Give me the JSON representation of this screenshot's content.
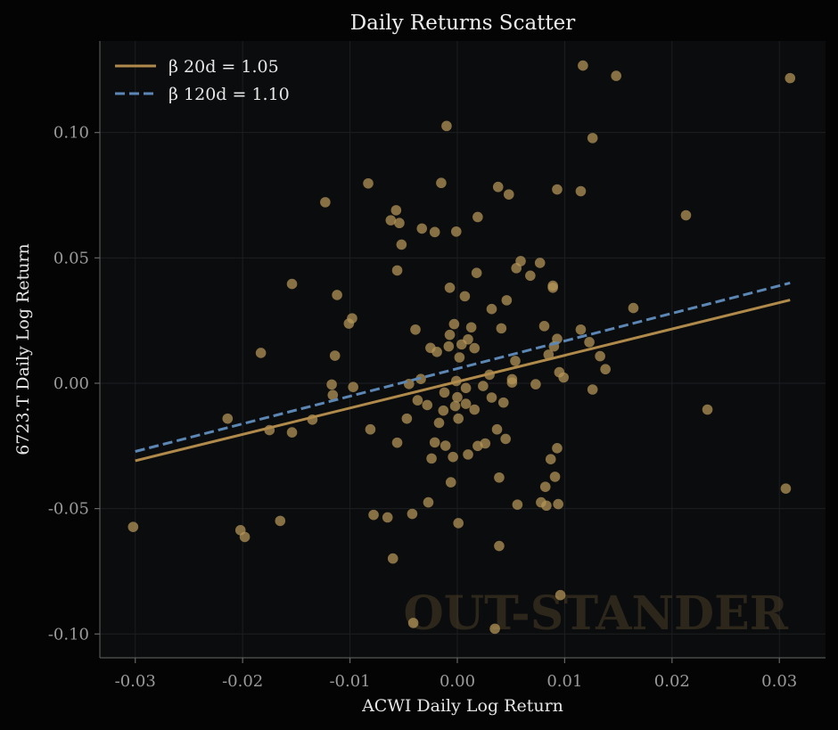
{
  "chart_data": {
    "type": "scatter",
    "title": "Daily Returns Scatter",
    "xlabel": "ACWI Daily Log Return",
    "ylabel": "6723.T Daily Log Return",
    "xlim": [
      -0.0333,
      0.0343
    ],
    "ylim": [
      -0.1095,
      0.1365
    ],
    "x_ticks": [
      -0.03,
      -0.02,
      -0.01,
      0.0,
      0.01,
      0.02,
      0.03
    ],
    "x_tick_labels": [
      "-0.03",
      "-0.02",
      "-0.01",
      "0.00",
      "0.01",
      "0.02",
      "0.03"
    ],
    "y_ticks": [
      -0.1,
      -0.05,
      0.0,
      0.05,
      0.1
    ],
    "y_tick_labels": [
      "-0.10",
      "-0.05",
      "0.00",
      "0.05",
      "0.10"
    ],
    "grid": true,
    "legend_position": "top-left",
    "watermark": "OUT-STANDER",
    "colors": {
      "background": "#0b0c0e",
      "figure": "#040404",
      "points": "#b79759",
      "line_20d": "#b08a4a",
      "line_120d": "#5c87b5",
      "grid": "#1c1e21",
      "axis": "#555555"
    },
    "lines": [
      {
        "name": "β 20d = 1.05",
        "style": "solid",
        "x": [
          -0.03,
          0.031
        ],
        "y": [
          -0.0309,
          0.0332
        ]
      },
      {
        "name": "β 120d = 1.10",
        "style": "dashed",
        "x": [
          -0.03,
          0.031
        ],
        "y": [
          -0.0272,
          0.04
        ]
      }
    ],
    "points": [
      [
        -0.0302,
        -0.0573
      ],
      [
        -0.0214,
        -0.0141
      ],
      [
        -0.0202,
        -0.0586
      ],
      [
        -0.0198,
        -0.0613
      ],
      [
        -0.0183,
        0.0121
      ],
      [
        -0.0175,
        -0.0187
      ],
      [
        -0.0165,
        -0.0549
      ],
      [
        -0.0154,
        0.0396
      ],
      [
        -0.0154,
        -0.0196
      ],
      [
        -0.0135,
        -0.0145
      ],
      [
        -0.0123,
        0.0722
      ],
      [
        -0.0117,
        -0.0005
      ],
      [
        -0.0116,
        -0.0047
      ],
      [
        -0.0114,
        0.011
      ],
      [
        -0.0112,
        0.0352
      ],
      [
        -0.0101,
        0.0238
      ],
      [
        -0.0098,
        0.0259
      ],
      [
        -0.0097,
        -0.0015
      ],
      [
        -0.0083,
        0.0797
      ],
      [
        -0.0081,
        -0.0184
      ],
      [
        -0.0078,
        -0.0525
      ],
      [
        -0.0065,
        -0.0535
      ],
      [
        -0.0062,
        0.065
      ],
      [
        -0.006,
        -0.0699
      ],
      [
        -0.0057,
        0.069
      ],
      [
        -0.0056,
        0.045
      ],
      [
        -0.0056,
        -0.0237
      ],
      [
        -0.0054,
        0.0639
      ],
      [
        -0.0052,
        0.0553
      ],
      [
        -0.0047,
        -0.0141
      ],
      [
        -0.0045,
        -0.0003
      ],
      [
        -0.0042,
        -0.0521
      ],
      [
        -0.0041,
        -0.0956
      ],
      [
        -0.0039,
        0.0214
      ],
      [
        -0.0037,
        -0.0068
      ],
      [
        -0.0034,
        0.0017
      ],
      [
        -0.0033,
        0.0617
      ],
      [
        -0.0028,
        -0.0087
      ],
      [
        -0.0027,
        -0.0475
      ],
      [
        -0.0025,
        0.0141
      ],
      [
        -0.0024,
        -0.03
      ],
      [
        -0.0021,
        0.0603
      ],
      [
        -0.0021,
        -0.0236
      ],
      [
        -0.0019,
        0.0125
      ],
      [
        -0.0017,
        -0.0158
      ],
      [
        -0.0015,
        0.0799
      ],
      [
        -0.0013,
        -0.0109
      ],
      [
        -0.0012,
        -0.0037
      ],
      [
        -0.0011,
        -0.0249
      ],
      [
        -0.001,
        0.1026
      ],
      [
        -0.0008,
        0.0147
      ],
      [
        -0.0007,
        0.0193
      ],
      [
        -0.0007,
        0.0381
      ],
      [
        -0.0006,
        -0.0395
      ],
      [
        -0.0004,
        -0.0294
      ],
      [
        -0.0003,
        0.0236
      ],
      [
        -0.0002,
        -0.0091
      ],
      [
        -0.0001,
        0.0605
      ],
      [
        -0.0001,
        0.0009
      ],
      [
        0.0,
        -0.0056
      ],
      [
        0.0001,
        -0.0141
      ],
      [
        0.0001,
        -0.0558
      ],
      [
        0.0002,
        0.0103
      ],
      [
        0.0004,
        0.0155
      ],
      [
        0.0007,
        0.0347
      ],
      [
        0.0008,
        -0.0019
      ],
      [
        0.0008,
        -0.0082
      ],
      [
        0.001,
        0.0175
      ],
      [
        0.001,
        -0.0284
      ],
      [
        0.0013,
        0.0223
      ],
      [
        0.0016,
        0.014
      ],
      [
        0.0016,
        -0.0105
      ],
      [
        0.0018,
        0.044
      ],
      [
        0.0019,
        0.0663
      ],
      [
        0.0019,
        -0.025
      ],
      [
        0.0024,
        -0.0011
      ],
      [
        0.0026,
        -0.024
      ],
      [
        0.003,
        0.0034
      ],
      [
        0.0032,
        0.0296
      ],
      [
        0.0032,
        -0.0057
      ],
      [
        0.0035,
        -0.0979
      ],
      [
        0.0037,
        -0.0184
      ],
      [
        0.0038,
        0.0783
      ],
      [
        0.0039,
        -0.0376
      ],
      [
        0.0039,
        -0.0649
      ],
      [
        0.0041,
        0.0219
      ],
      [
        0.0043,
        -0.0077
      ],
      [
        0.0045,
        -0.0222
      ],
      [
        0.0046,
        0.0331
      ],
      [
        0.0048,
        0.0753
      ],
      [
        0.0051,
        0.0003
      ],
      [
        0.0051,
        0.0016
      ],
      [
        0.0054,
        0.0089
      ],
      [
        0.0055,
        0.0459
      ],
      [
        0.0056,
        -0.0484
      ],
      [
        0.0059,
        0.0487
      ],
      [
        0.0068,
        0.0429
      ],
      [
        0.0073,
        -0.0004
      ],
      [
        0.0077,
        0.048
      ],
      [
        0.0078,
        -0.0475
      ],
      [
        0.0081,
        0.0228
      ],
      [
        0.0082,
        -0.0413
      ],
      [
        0.0083,
        -0.0488
      ],
      [
        0.0085,
        0.0114
      ],
      [
        0.0087,
        -0.0303
      ],
      [
        0.0089,
        0.0389
      ],
      [
        0.0089,
        0.0381
      ],
      [
        0.009,
        0.0147
      ],
      [
        0.0091,
        -0.0373
      ],
      [
        0.0093,
        0.0773
      ],
      [
        0.0093,
        0.0177
      ],
      [
        0.0093,
        -0.0259
      ],
      [
        0.0094,
        -0.0482
      ],
      [
        0.0095,
        0.0044
      ],
      [
        0.0096,
        -0.0845
      ],
      [
        0.0099,
        0.0023
      ],
      [
        0.0115,
        0.0214
      ],
      [
        0.0115,
        0.0766
      ],
      [
        0.0117,
        0.1267
      ],
      [
        0.0123,
        0.0164
      ],
      [
        0.0126,
        0.0978
      ],
      [
        0.0126,
        -0.0025
      ],
      [
        0.0133,
        0.0108
      ],
      [
        0.0138,
        0.0056
      ],
      [
        0.0148,
        0.1226
      ],
      [
        0.0164,
        0.03
      ],
      [
        0.0213,
        0.067
      ],
      [
        0.0233,
        -0.0105
      ],
      [
        0.0306,
        -0.042
      ],
      [
        0.031,
        0.1217
      ]
    ]
  }
}
